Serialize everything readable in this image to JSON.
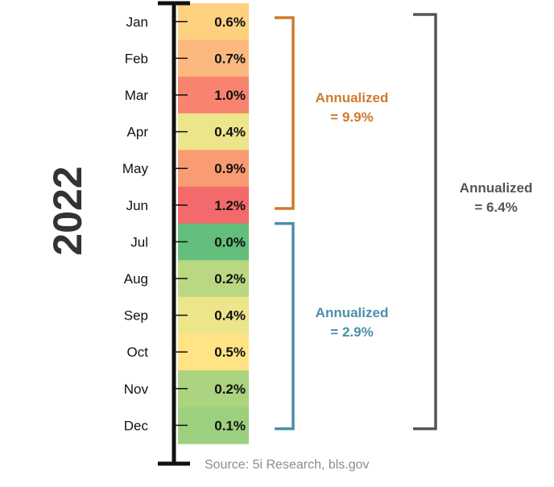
{
  "chart_data": {
    "type": "table",
    "year": "2022",
    "months": [
      "Jan",
      "Feb",
      "Mar",
      "Apr",
      "May",
      "Jun",
      "Jul",
      "Aug",
      "Sep",
      "Oct",
      "Nov",
      "Dec"
    ],
    "values": [
      0.6,
      0.7,
      1.0,
      0.4,
      0.9,
      1.2,
      0.0,
      0.2,
      0.4,
      0.5,
      0.2,
      0.1
    ],
    "value_labels": [
      "0.6%",
      "0.7%",
      "1.0%",
      "0.4%",
      "0.9%",
      "1.2%",
      "0.0%",
      "0.2%",
      "0.4%",
      "0.5%",
      "0.2%",
      "0.1%"
    ],
    "cell_colors": [
      "#fdd17f",
      "#fbb97f",
      "#f8836f",
      "#ede58a",
      "#f99b73",
      "#f4696b",
      "#63be7b",
      "#bad881",
      "#ede58a",
      "#ffe384",
      "#acd37f",
      "#9dd07e"
    ],
    "annotations": [
      {
        "id": "h1",
        "line1": "Annualized",
        "line2": "= 9.9%",
        "color": "#d07a2c",
        "from_month": "Jan",
        "to_month": "Jun"
      },
      {
        "id": "h2",
        "line1": "Annualized",
        "line2": "= 2.9%",
        "color": "#4b8fa9",
        "from_month": "Jul",
        "to_month": "Dec"
      },
      {
        "id": "full",
        "line1": "Annualized",
        "line2": "= 6.4%",
        "color": "#555555",
        "from_month": "Jan",
        "to_month": "Dec"
      }
    ]
  },
  "source": "Source: 5i Research, bls.gov"
}
